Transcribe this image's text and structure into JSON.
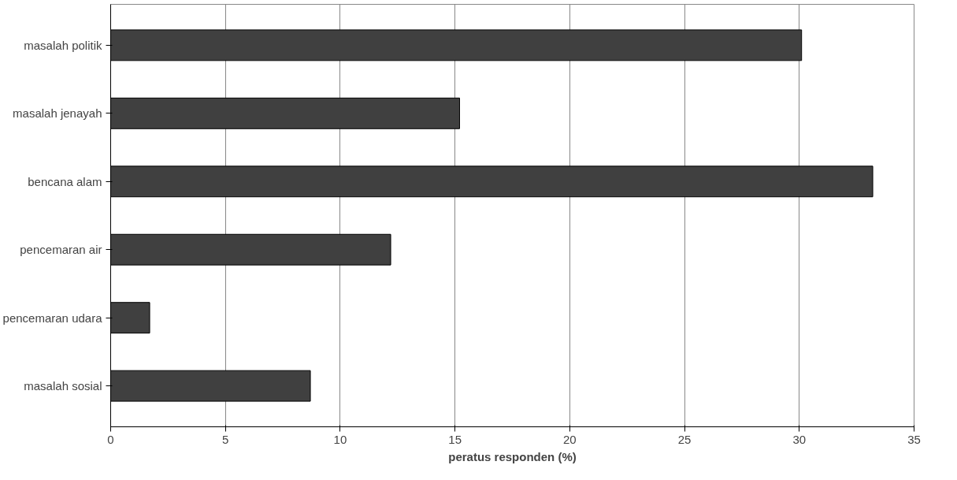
{
  "chart_data": {
    "type": "bar",
    "orientation": "horizontal",
    "xlabel": "peratus responden (%)",
    "categories": [
      "masalah politik",
      "masalah jenayah",
      "bencana alam",
      "pencemaran air",
      "pencemaran udara",
      "masalah sosial"
    ],
    "values": [
      30.1,
      15.2,
      33.2,
      12.2,
      1.7,
      8.7
    ],
    "color": "#404040",
    "xlim": [
      0,
      35
    ],
    "xticks": [
      0,
      5,
      10,
      15,
      20,
      25,
      30,
      35
    ],
    "grid": "x"
  }
}
